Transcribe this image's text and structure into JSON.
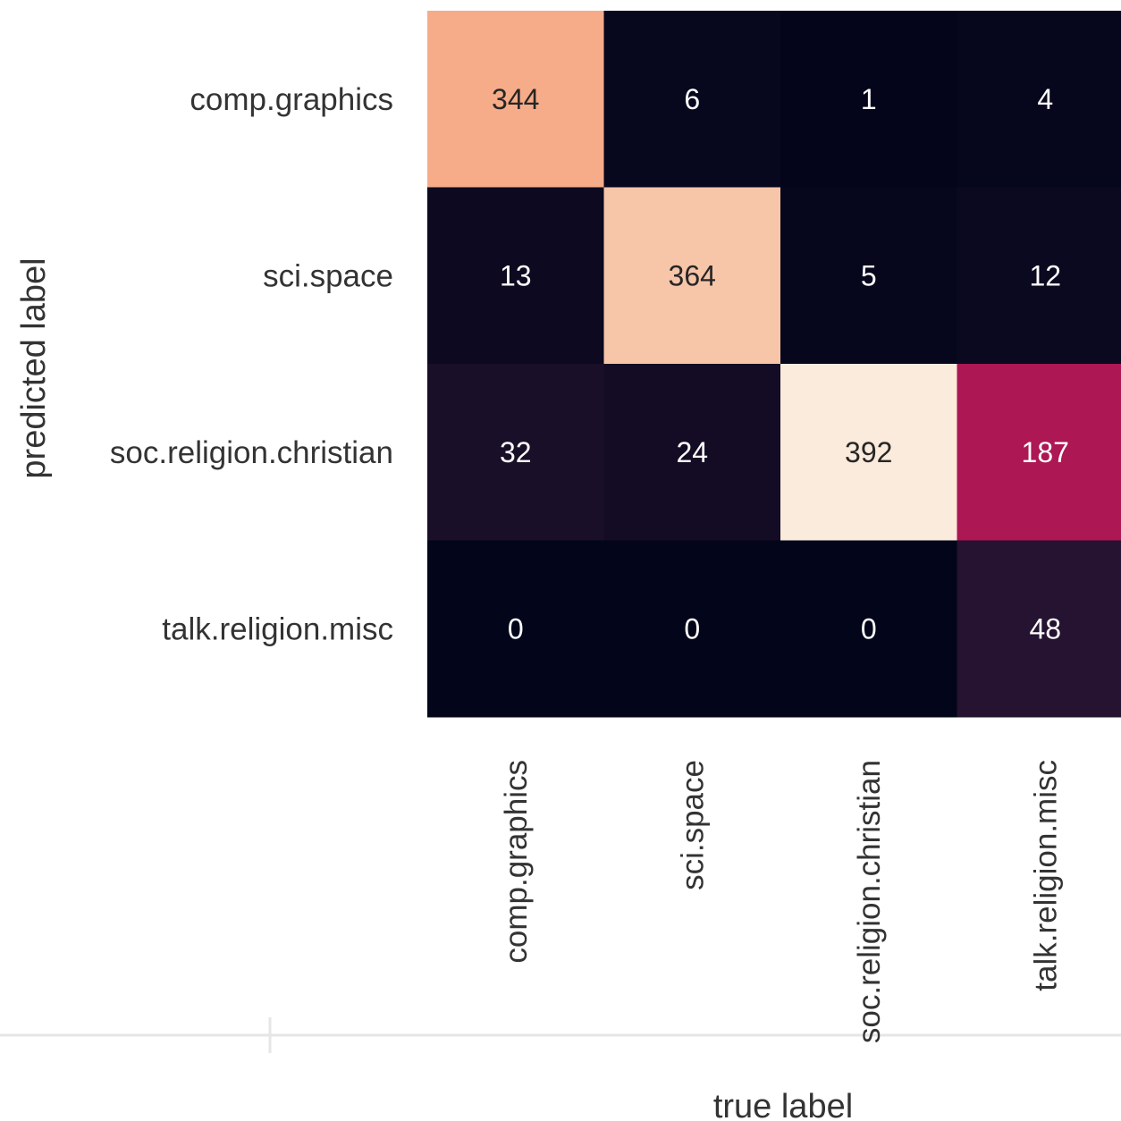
{
  "chart_data": {
    "type": "heatmap",
    "title": "",
    "xlabel": "true label",
    "ylabel": "predicted label",
    "x_categories": [
      "comp.graphics",
      "sci.space",
      "soc.religion.christian",
      "talk.religion.misc"
    ],
    "y_categories": [
      "comp.graphics",
      "sci.space",
      "soc.religion.christian",
      "talk.religion.misc"
    ],
    "values": [
      [
        344,
        6,
        1,
        4
      ],
      [
        13,
        364,
        5,
        12
      ],
      [
        32,
        24,
        392,
        187
      ],
      [
        0,
        0,
        0,
        48
      ]
    ],
    "colormap": "rocket",
    "colorbar": false,
    "annotated": true
  }
}
